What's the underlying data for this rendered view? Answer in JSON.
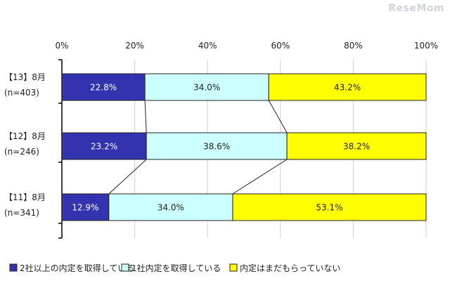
{
  "watermark": "ReseMom",
  "chart_data": {
    "type": "bar",
    "orientation": "horizontal",
    "stacked": "percent",
    "xlim": [
      0,
      100
    ],
    "x_ticks": [
      "0%",
      "20%",
      "40%",
      "60%",
      "80%",
      "100%"
    ],
    "x_tick_values": [
      0,
      20,
      40,
      60,
      80,
      100
    ],
    "categories": [
      {
        "label": "【13】8月",
        "n": "(n=403)"
      },
      {
        "label": "【12】8月",
        "n": "(n=246)"
      },
      {
        "label": "【11】8月",
        "n": "(n=341)"
      }
    ],
    "series": [
      {
        "name": "2社以上の内定を取得している",
        "color": "#3333b0",
        "labelColor": "#ffffff",
        "values": [
          22.8,
          23.2,
          12.9
        ],
        "labels": [
          "22.8%",
          "23.2%",
          "12.9%"
        ]
      },
      {
        "name": "1社内定を取得している",
        "color": "#ccffff",
        "labelColor": "#222222",
        "values": [
          34.0,
          38.6,
          34.0
        ],
        "labels": [
          "34.0%",
          "38.6%",
          "34.0%"
        ]
      },
      {
        "name": "内定はまだもらっていない",
        "color": "#ffff00",
        "labelColor": "#222222",
        "values": [
          43.2,
          38.2,
          53.1
        ],
        "labels": [
          "43.2%",
          "38.2%",
          "53.1%"
        ]
      }
    ],
    "grid": true,
    "legend_position": "bottom",
    "connector_lines": true
  }
}
